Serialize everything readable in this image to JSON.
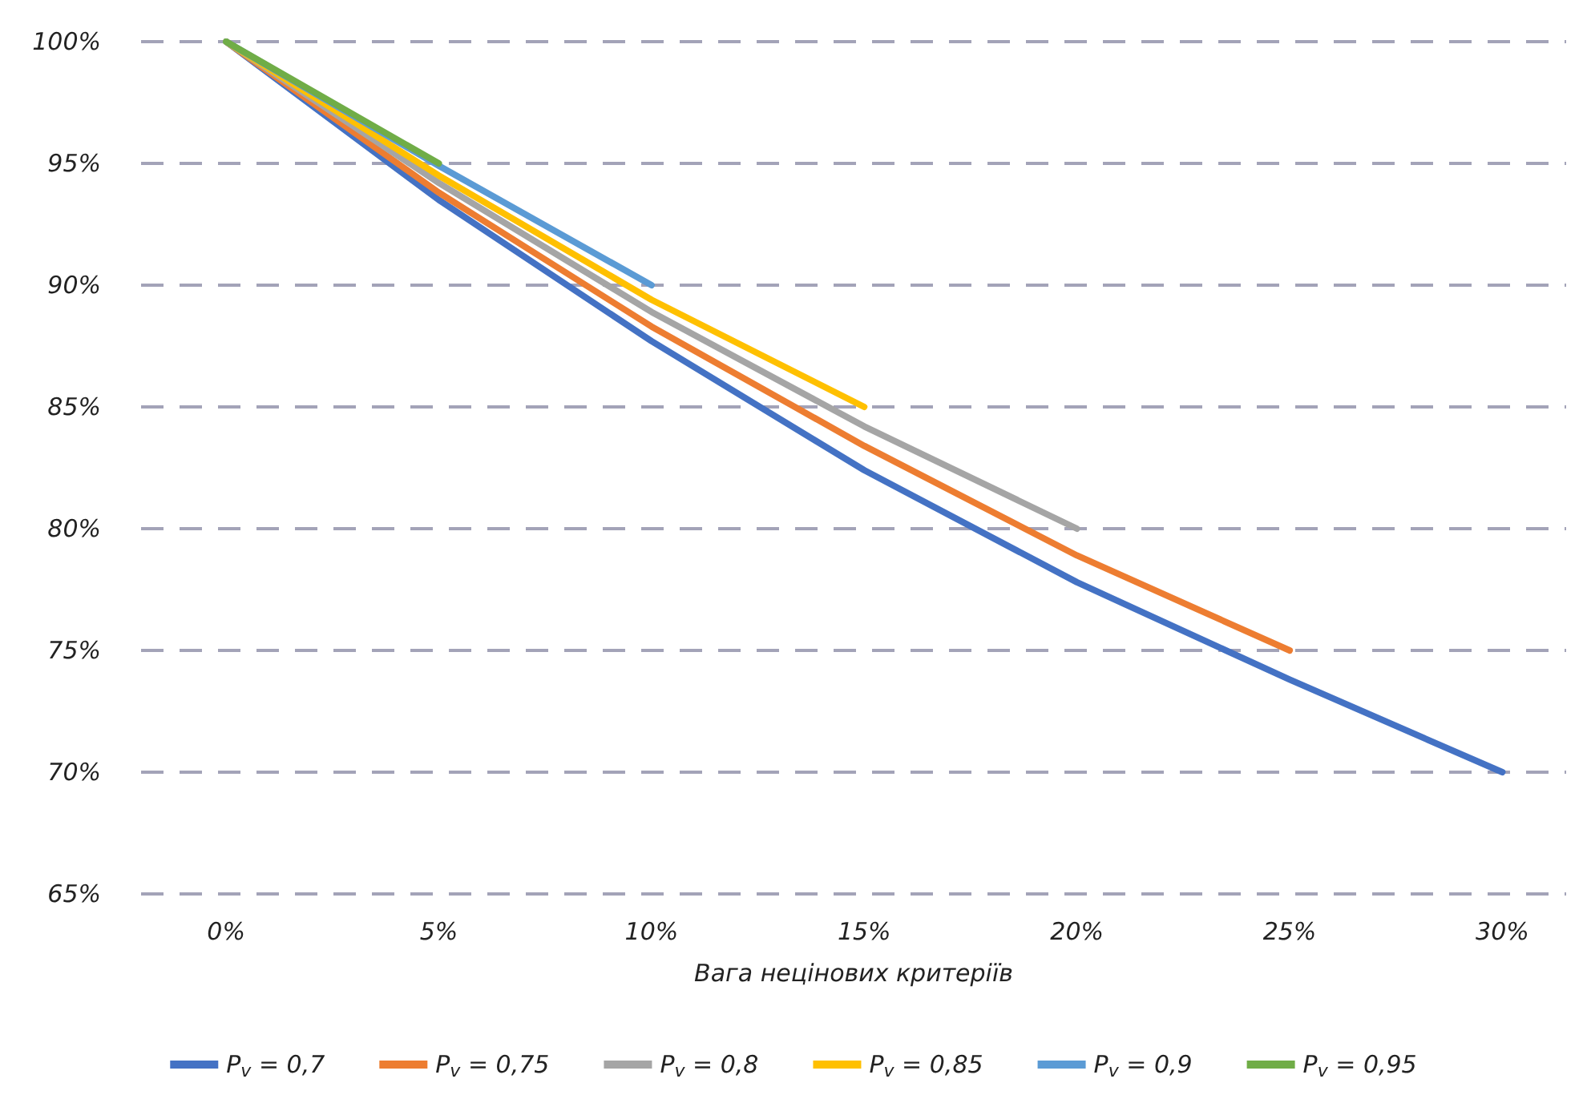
{
  "chart_data": {
    "type": "line",
    "xlabel": "Вага нецінових критеріїв",
    "x": [
      0,
      5,
      10,
      15,
      20,
      25,
      30
    ],
    "series": [
      {
        "name": "P$_{v}$ = 0,7",
        "color": "#4472c4",
        "values": [
          100,
          93.5,
          87.7,
          82.4,
          77.8,
          73.8,
          70
        ]
      },
      {
        "name": "P$_{v}$ = 0,75",
        "color": "#ed7d31",
        "values": [
          100,
          93.8,
          88.3,
          83.4,
          78.9,
          75,
          null
        ]
      },
      {
        "name": "P$_{v}$ = 0,8",
        "color": "#a5a5a5",
        "values": [
          100,
          94.2,
          88.9,
          84.2,
          80,
          null,
          null
        ]
      },
      {
        "name": "P$_{v}$ = 0,85",
        "color": "#ffc000",
        "values": [
          100,
          94.5,
          89.4,
          85,
          null,
          null,
          null
        ]
      },
      {
        "name": "P$_{v}$ = 0,9",
        "color": "#5b9bd5",
        "values": [
          100,
          94.9,
          90,
          null,
          null,
          null,
          null
        ]
      },
      {
        "name": "P$_{v}$ = 0,95",
        "color": "#70ad47",
        "values": [
          100,
          95,
          null,
          null,
          null,
          null,
          null
        ]
      }
    ],
    "xlim": [
      -2,
      31.5
    ],
    "xticks": [
      {
        "value": 0,
        "label": "0%"
      },
      {
        "value": 5,
        "label": "5%"
      },
      {
        "value": 10,
        "label": "10%"
      },
      {
        "value": 15,
        "label": "15%"
      },
      {
        "value": 20,
        "label": "20%"
      },
      {
        "value": 25,
        "label": "25%"
      },
      {
        "value": 30,
        "label": "30%"
      }
    ],
    "ylim": [
      65,
      100
    ],
    "yticks": [
      {
        "value": 65,
        "label": "65%"
      },
      {
        "value": 70,
        "label": "70%"
      },
      {
        "value": 75,
        "label": "75%"
      },
      {
        "value": 80,
        "label": "80%"
      },
      {
        "value": 85,
        "label": "85%"
      },
      {
        "value": 90,
        "label": "90%"
      },
      {
        "value": 95,
        "label": "95%"
      },
      {
        "value": 100,
        "label": "100%"
      }
    ],
    "grid": "y",
    "legend": "bottom",
    "marker": "none",
    "line_style": "solid"
  }
}
